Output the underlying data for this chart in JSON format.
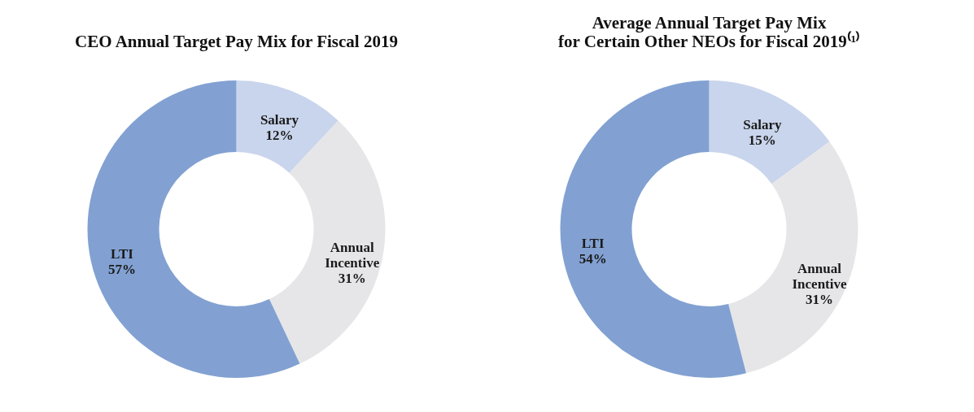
{
  "chart_data": [
    {
      "type": "donut",
      "title": "CEO Annual Target Pay Mix for Fiscal 2019",
      "categories": [
        "Salary",
        "Annual Incentive",
        "LTI"
      ],
      "values": [
        12,
        31,
        57
      ],
      "value_labels": [
        "12%",
        "31%",
        "57%"
      ],
      "colors": [
        "#c9d5ec",
        "#e6e6e8",
        "#82a1d2"
      ]
    },
    {
      "type": "donut",
      "title": "Average Annual Target Pay Mix\nfor Certain Other NEOs for Fiscal 2019⁽¹⁾",
      "categories": [
        "Salary",
        "Annual Incentive",
        "LTI"
      ],
      "values": [
        15,
        31,
        54
      ],
      "value_labels": [
        "15%",
        "31%",
        "54%"
      ],
      "colors": [
        "#c9d5ec",
        "#e6e6e8",
        "#82a1d2"
      ]
    }
  ]
}
